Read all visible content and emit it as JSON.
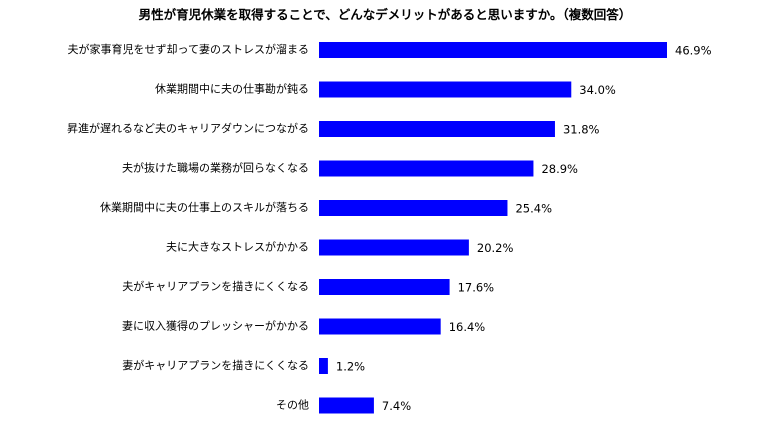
{
  "chart_data": {
    "type": "bar",
    "orientation": "horizontal",
    "title": "男性が育児休業を取得することで、どんなデメリットがあると思いますか。（複数回答）",
    "categories": [
      "夫が家事育児をせず却って妻のストレスが溜まる",
      "休業期間中に夫の仕事勘が鈍る",
      "昇進が遅れるなど夫のキャリアダウンにつながる",
      "夫が抜けた職場の業務が回らなくなる",
      "休業期間中に夫の仕事上のスキルが落ちる",
      "夫に大きなストレスがかかる",
      "夫がキャリアプランを描きにくくなる",
      "妻に収入獲得のプレッシャーがかかる",
      "妻がキャリアプランを描きにくくなる",
      "その他"
    ],
    "values": [
      46.9,
      34.0,
      31.8,
      28.9,
      25.4,
      20.2,
      17.6,
      16.4,
      1.2,
      7.4
    ],
    "value_labels": [
      "46.9%",
      "34.0%",
      "31.8%",
      "28.9%",
      "25.4%",
      "20.2%",
      "17.6%",
      "16.4%",
      "1.2%",
      "7.4%"
    ],
    "unit": "%",
    "xlim": [
      0,
      46.9
    ],
    "bar_color": "#0000ff",
    "grid": false,
    "legend": "none"
  }
}
